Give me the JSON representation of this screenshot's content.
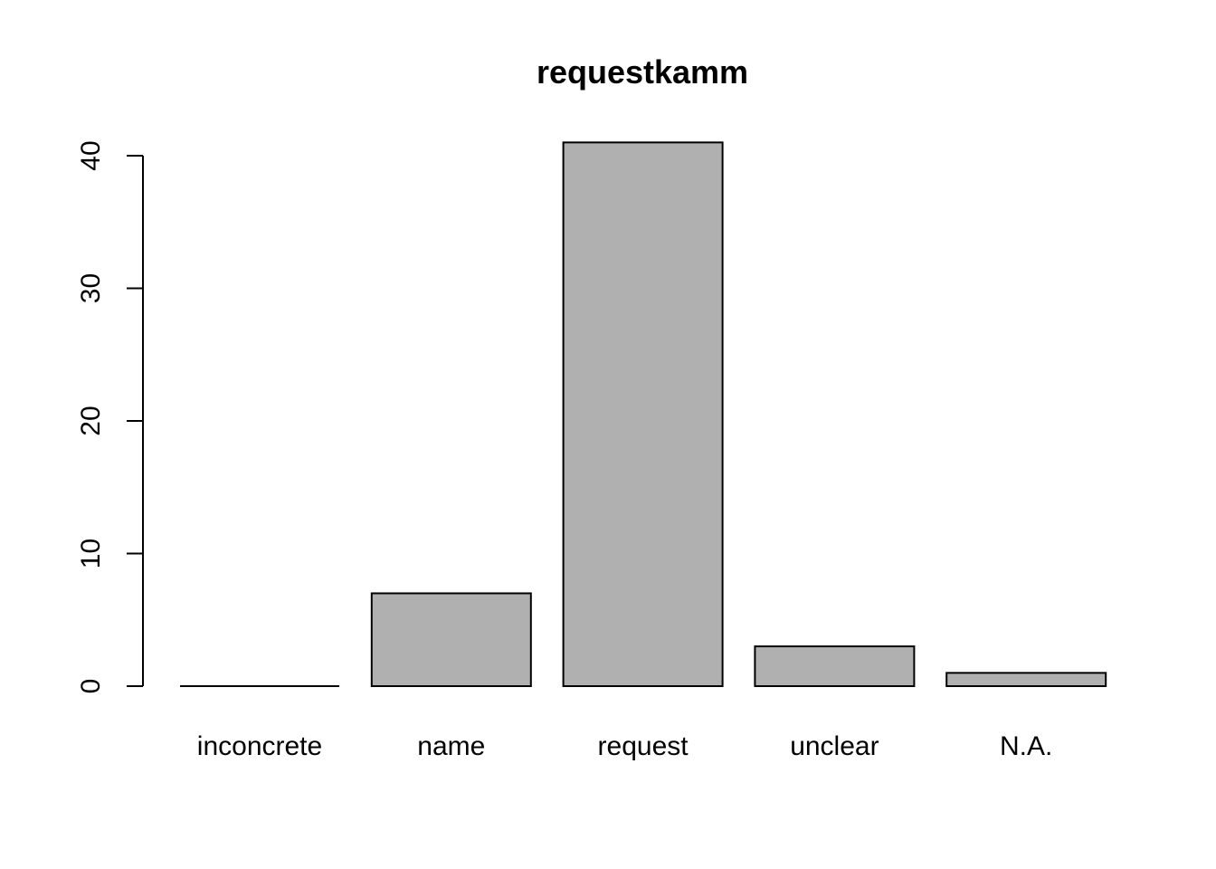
{
  "chart_data": {
    "type": "bar",
    "title": "requestkamm",
    "xlabel": "",
    "ylabel": "",
    "categories": [
      "inconcrete",
      "name",
      "request",
      "unclear",
      "N.A."
    ],
    "values": [
      0,
      7,
      41,
      3,
      1
    ],
    "ylim": [
      0,
      41
    ],
    "yticks": [
      0,
      10,
      20,
      30,
      40
    ],
    "bar_color": "#b0b0b0",
    "grid": false,
    "legend": "none"
  }
}
